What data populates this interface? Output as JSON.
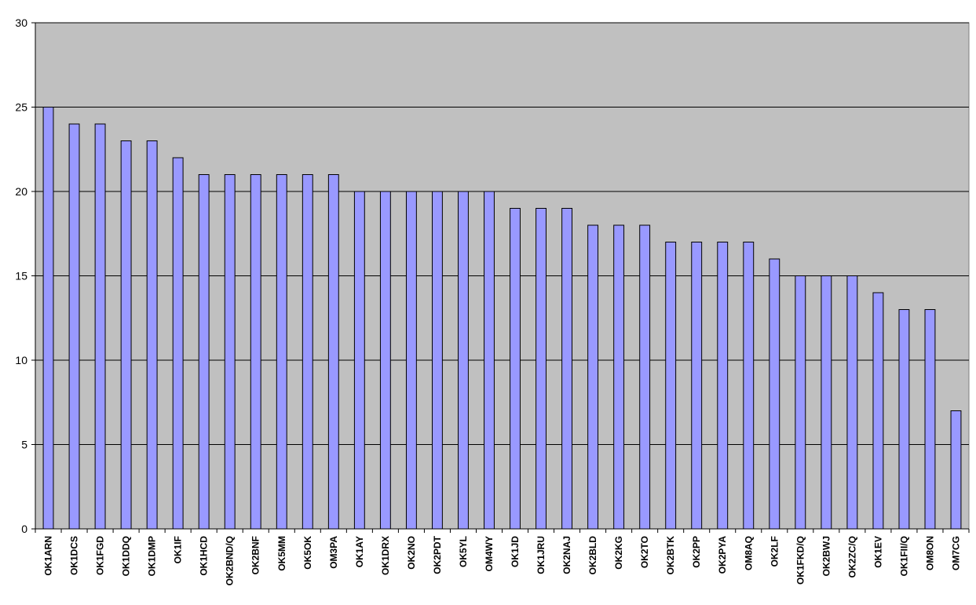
{
  "chart_data": {
    "type": "bar",
    "title": "",
    "xlabel": "",
    "ylabel": "",
    "ylim": [
      0,
      30
    ],
    "yticks": [
      0,
      5,
      10,
      15,
      20,
      25,
      30
    ],
    "grid": true,
    "legend": "none",
    "categories": [
      "OK1ARN",
      "OK1DCS",
      "OK1FGD",
      "OK1DDQ",
      "OK1DMP",
      "OK1IF",
      "OK1HCD",
      "OK2BND/Q",
      "OK2BNF",
      "OK5MM",
      "OK5OK",
      "OM3PA",
      "OK1AY",
      "OK1DRX",
      "OK2NO",
      "OK2PDT",
      "OK5YL",
      "OM4WY",
      "OK1JD",
      "OK1JRU",
      "OK2NAJ",
      "OK2BLD",
      "OK2KG",
      "OK2TO",
      "OK2BTK",
      "OK2PP",
      "OK2PYA",
      "OM8AQ",
      "OK2LF",
      "OK1FKD/Q",
      "OK2BWJ",
      "OK2ZC/Q",
      "OK1EV",
      "OK1FII/Q",
      "OM8ON",
      "OM7CG"
    ],
    "values": [
      25,
      24,
      24,
      23,
      23,
      22,
      21,
      21,
      21,
      21,
      21,
      21,
      20,
      20,
      20,
      20,
      20,
      20,
      19,
      19,
      19,
      18,
      18,
      18,
      17,
      17,
      17,
      17,
      16,
      15,
      15,
      15,
      14,
      13,
      13,
      7
    ],
    "colors": {
      "bar_fill": "#9999ff",
      "bar_stroke": "#000000",
      "plot_background": "#c0c0c0",
      "gridline": "#000000",
      "page_background": "#ffffff"
    }
  }
}
